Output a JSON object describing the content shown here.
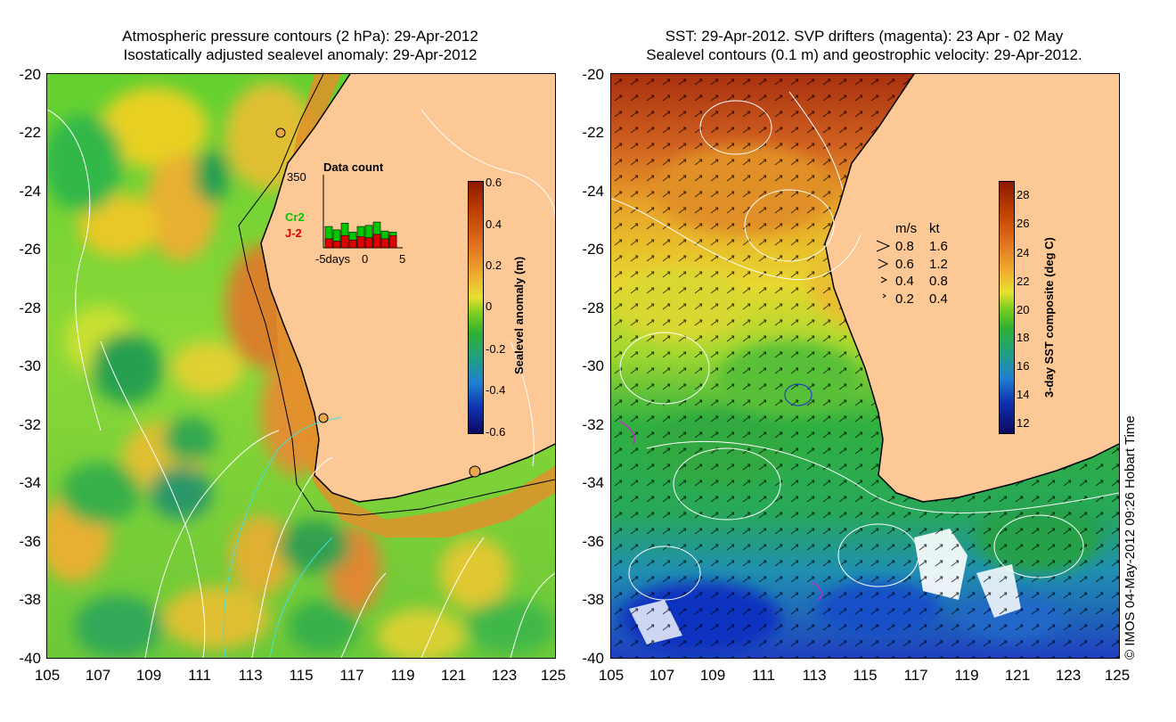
{
  "left_panel": {
    "title_line1": "Atmospheric pressure contours (2 hPa): 29-Apr-2012",
    "title_line2": "Isostatically adjusted sealevel anomaly: 29-Apr-2012",
    "y_ticks": [
      "-20",
      "-22",
      "-24",
      "-26",
      "-28",
      "-30",
      "-32",
      "-34",
      "-36",
      "-38",
      "-40"
    ],
    "x_ticks": [
      "105",
      "107",
      "109",
      "111",
      "113",
      "115",
      "117",
      "119",
      "121",
      "123",
      "125"
    ],
    "colorbar": {
      "label": "Sealevel anomaly (m)",
      "ticks": [
        "0.6",
        "0.4",
        "0.2",
        "0",
        "-0.2",
        "-0.4",
        "-0.6"
      ]
    },
    "inset": {
      "title": "Data count",
      "y_max": "350",
      "series": [
        {
          "name": "Cr2",
          "color": "#00c800"
        },
        {
          "name": "J-2",
          "color": "#e00000"
        }
      ],
      "x_labels": [
        "-5days",
        "0",
        "5"
      ],
      "bars_cr2": [
        95,
        80,
        110,
        70,
        95,
        100,
        115,
        75,
        70
      ],
      "bars_j2": [
        40,
        30,
        55,
        35,
        50,
        45,
        60,
        40,
        55
      ]
    }
  },
  "right_panel": {
    "title_line1": "SST: 29-Apr-2012. SVP drifters (magenta): 23 Apr - 02 May",
    "title_line2": "Sealevel contours (0.1 m) and geostrophic velocity: 29-Apr-2012.",
    "y_ticks": [
      "-20",
      "-22",
      "-24",
      "-26",
      "-28",
      "-30",
      "-32",
      "-34",
      "-36",
      "-38",
      "-40"
    ],
    "x_ticks": [
      "105",
      "107",
      "109",
      "111",
      "113",
      "115",
      "117",
      "119",
      "121",
      "123",
      "125"
    ],
    "colorbar": {
      "label": "3-day SST composite (deg C)",
      "ticks": [
        "28",
        "26",
        "24",
        "22",
        "20",
        "18",
        "16",
        "14",
        "12"
      ]
    },
    "velocity_legend": {
      "header_ms": "m/s",
      "header_kt": "kt",
      "rows": [
        {
          "ms": "0.8",
          "kt": "1.6"
        },
        {
          "ms": "0.6",
          "kt": "1.2"
        },
        {
          "ms": "0.4",
          "kt": "0.8"
        },
        {
          "ms": "0.2",
          "kt": "0.4"
        }
      ]
    }
  },
  "copyright": "© IMOS 04-May-2012 09:26 Hobart Time",
  "colors": {
    "land": "#fbc896",
    "coast": "#000000",
    "drifter": "#d020d0",
    "contour": "#ffffff",
    "cyan_contour": "#40e0e0"
  }
}
